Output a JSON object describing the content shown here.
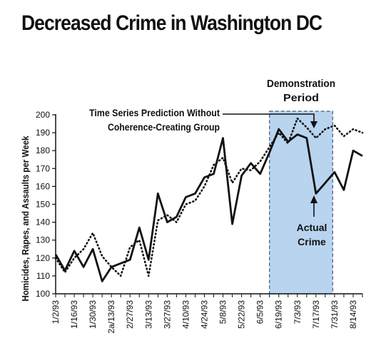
{
  "chart_data": {
    "type": "line",
    "title": "Decreased Crime in Washington DC",
    "xlabel": "",
    "ylabel": "Homicides, Rapes, and Assaults per Week",
    "ylim": [
      100,
      200
    ],
    "yticks": [
      100,
      110,
      120,
      130,
      140,
      150,
      160,
      170,
      180,
      190,
      200
    ],
    "x_tick_labels": [
      "1/2/93",
      "1/16/93",
      "1/30/93",
      "2a/13/93",
      "2/27/93",
      "3/13/93",
      "3/27/93",
      "4/10/93",
      "4/24/93",
      "5/8/93",
      "5/22/93",
      "6/5/93",
      "6/19/93",
      "7/3/93",
      "7/17/93",
      "7/31/93",
      "8/14/93"
    ],
    "series": [
      {
        "name": "Actual Crime",
        "style": "solid",
        "values": [
          122,
          113,
          124,
          115,
          125,
          107,
          115,
          117,
          119,
          137,
          119,
          156,
          140,
          143,
          154,
          156,
          165,
          167,
          187,
          139,
          166,
          173,
          167,
          179,
          192,
          185,
          189,
          187,
          156,
          162,
          168,
          158,
          180,
          177
        ]
      },
      {
        "name": "Time Series Prediction Without Coherence-Creating Group",
        "style": "dotted",
        "values": [
          120,
          112,
          120,
          125,
          134,
          121,
          115,
          110,
          126,
          130,
          110,
          141,
          144,
          140,
          150,
          152,
          160,
          172,
          176,
          162,
          170,
          169,
          174,
          182,
          190,
          184,
          198,
          193,
          187,
          192,
          194,
          188,
          192,
          190
        ]
      }
    ],
    "shaded_region": {
      "label": "Demonstration Period",
      "label_lines": [
        "Demonstration",
        "Period"
      ],
      "start_index": 23,
      "end_index": 29.8,
      "color": "#b9d4ef"
    },
    "annotations": [
      {
        "lines": [
          "Time Series Prediction Without",
          "Coherence-Creating Group"
        ],
        "series": 1
      },
      {
        "lines": [
          "Actual",
          "Crime"
        ],
        "series": 0
      }
    ],
    "grid": false,
    "legend": "none"
  },
  "colors": {
    "line": "#111111",
    "shade": "#b9d4ef",
    "shade_border": "#3c5a7a"
  }
}
